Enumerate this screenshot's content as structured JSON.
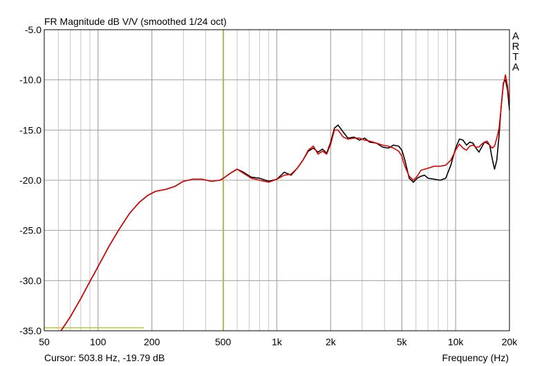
{
  "chart_data": {
    "type": "line",
    "title": "FR Magnitude dB V/V (smoothed 1/24 oct)",
    "xlabel": "Frequency (Hz)",
    "ylabel": "",
    "x_scale": "log",
    "xlim": [
      50,
      20000
    ],
    "ylim": [
      -35,
      -5
    ],
    "x_ticks": [
      {
        "value": 50,
        "label": "50"
      },
      {
        "value": 100,
        "label": "100"
      },
      {
        "value": 200,
        "label": "200"
      },
      {
        "value": 500,
        "label": "500"
      },
      {
        "value": 1000,
        "label": "1k"
      },
      {
        "value": 2000,
        "label": "2k"
      },
      {
        "value": 5000,
        "label": "5k"
      },
      {
        "value": 10000,
        "label": "10k"
      },
      {
        "value": 20000,
        "label": "20k"
      }
    ],
    "y_ticks": [
      {
        "value": -5,
        "label": "-5.0"
      },
      {
        "value": -10,
        "label": "-10.0"
      },
      {
        "value": -15,
        "label": "-15.0"
      },
      {
        "value": -20,
        "label": "-20.0"
      },
      {
        "value": -25,
        "label": "-25.0"
      },
      {
        "value": -30,
        "label": "-30.0"
      },
      {
        "value": -35,
        "label": "-35.0"
      }
    ],
    "grid": true,
    "brand_letters": [
      "A",
      "R",
      "T",
      "A"
    ],
    "cursor": {
      "label": "Cursor: 503.8 Hz, -19.79 dB",
      "freq": 503.8,
      "value": -19.79,
      "color": "#c0c040"
    },
    "reference_segment": {
      "x": [
        50,
        180
      ],
      "y": -34.7,
      "color": "#c0c040"
    },
    "series": [
      {
        "color": "#000000",
        "x": [
          62,
          70,
          80,
          90,
          100,
          115,
          130,
          150,
          170,
          190,
          210,
          240,
          270,
          300,
          340,
          380,
          430,
          480,
          503.8,
          550,
          600,
          650,
          720,
          800,
          900,
          1000,
          1100,
          1200,
          1300,
          1400,
          1500,
          1600,
          1700,
          1800,
          1900,
          2000,
          2100,
          2200,
          2350,
          2500,
          2700,
          2900,
          3100,
          3300,
          3600,
          3900,
          4200,
          4500,
          4800,
          5000,
          5200,
          5500,
          5800,
          6100,
          6400,
          6700,
          7000,
          7600,
          8200,
          8800,
          9400,
          10000,
          10500,
          11000,
          11500,
          12000,
          12500,
          13000,
          13500,
          14000,
          14500,
          15000,
          15500,
          16000,
          16500,
          17000,
          17500,
          18000,
          18500,
          19000,
          19500,
          20000
        ],
        "y": [
          -35,
          -33.6,
          -31.8,
          -30.1,
          -28.6,
          -26.6,
          -25,
          -23.3,
          -22.2,
          -21.5,
          -21.1,
          -20.9,
          -20.6,
          -20.1,
          -19.9,
          -19.9,
          -20.1,
          -20,
          -19.79,
          -19.3,
          -18.9,
          -19.2,
          -19.7,
          -19.8,
          -20.1,
          -19.9,
          -19.2,
          -19.5,
          -18.8,
          -18,
          -17.1,
          -16.8,
          -17.2,
          -16.9,
          -17.3,
          -16.2,
          -14.8,
          -14.5,
          -15.2,
          -15.8,
          -15.7,
          -16.0,
          -15.8,
          -16.2,
          -16.3,
          -16.7,
          -16.8,
          -16.5,
          -16.6,
          -17.0,
          -18.0,
          -19.8,
          -20.2,
          -19.8,
          -19.6,
          -19.5,
          -19.8,
          -19.9,
          -20.0,
          -19.8,
          -18.5,
          -16.8,
          -15.9,
          -16.0,
          -16.5,
          -16.2,
          -16.3,
          -16.8,
          -17.2,
          -16.7,
          -16.2,
          -16.3,
          -16.5,
          -17.8,
          -18.9,
          -18.0,
          -15.5,
          -12.5,
          -10.3,
          -10.0,
          -11.0,
          -13.0
        ]
      },
      {
        "color": "#e00000",
        "x": [
          62,
          70,
          80,
          90,
          100,
          115,
          130,
          150,
          170,
          190,
          210,
          240,
          270,
          300,
          340,
          380,
          430,
          480,
          503.8,
          550,
          600,
          650,
          720,
          800,
          900,
          1000,
          1100,
          1200,
          1300,
          1400,
          1500,
          1600,
          1700,
          1800,
          1900,
          2000,
          2100,
          2200,
          2350,
          2500,
          2700,
          2900,
          3100,
          3300,
          3600,
          3900,
          4200,
          4500,
          4800,
          5000,
          5200,
          5500,
          5800,
          6100,
          6400,
          6700,
          7000,
          7600,
          8200,
          8800,
          9400,
          10000,
          10500,
          11000,
          11500,
          12000,
          12500,
          13000,
          13500,
          14000,
          14500,
          15000,
          15500,
          16000,
          16500,
          17000,
          17500,
          18000,
          18500,
          19000,
          19500,
          20000
        ],
        "y": [
          -35,
          -33.6,
          -31.8,
          -30.1,
          -28.6,
          -26.6,
          -25,
          -23.3,
          -22.2,
          -21.5,
          -21.1,
          -20.9,
          -20.6,
          -20.1,
          -19.9,
          -19.9,
          -20.1,
          -20,
          -19.79,
          -19.3,
          -18.9,
          -19.3,
          -19.8,
          -20.0,
          -20.2,
          -19.9,
          -19.5,
          -19.4,
          -18.8,
          -18.0,
          -17.0,
          -16.6,
          -17.4,
          -17.1,
          -17.4,
          -16.4,
          -15.0,
          -15.0,
          -15.7,
          -15.9,
          -15.8,
          -15.8,
          -16.0,
          -16.1,
          -16.3,
          -16.5,
          -16.6,
          -16.8,
          -17.1,
          -17.6,
          -18.6,
          -19.6,
          -20.0,
          -19.6,
          -19.0,
          -18.9,
          -18.8,
          -18.6,
          -18.6,
          -18.5,
          -18.0,
          -17.0,
          -16.4,
          -16.8,
          -17.0,
          -16.6,
          -16.5,
          -16.7,
          -16.7,
          -16.4,
          -16.2,
          -16.1,
          -16.5,
          -16.8,
          -16.6,
          -15.8,
          -14.8,
          -12.6,
          -10.5,
          -9.5,
          -10.6,
          -12.3
        ]
      }
    ]
  }
}
